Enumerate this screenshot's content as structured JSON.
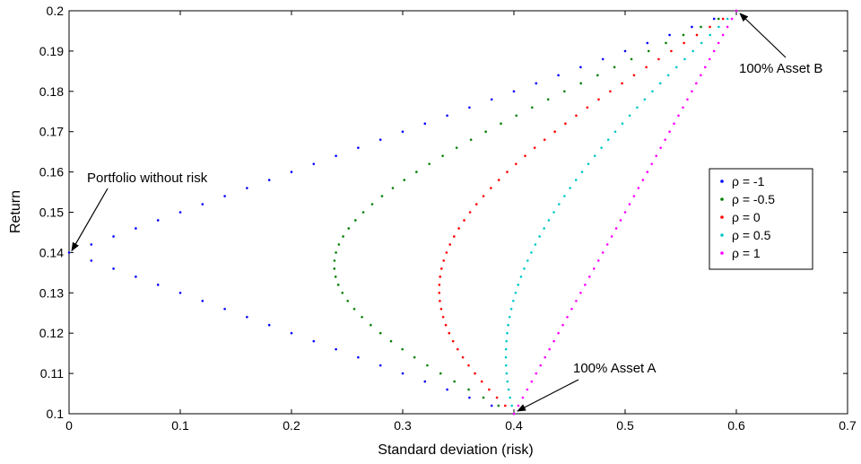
{
  "chart_data": {
    "type": "scatter",
    "xlabel": "Standard deviation (risk)",
    "ylabel": "Return",
    "xlim": [
      0,
      0.7
    ],
    "ylim": [
      0.1,
      0.2
    ],
    "xticks": [
      0,
      0.1,
      0.2,
      0.3,
      0.4,
      0.5,
      0.6,
      0.7
    ],
    "yticks": [
      0.1,
      0.11,
      0.12,
      0.13,
      0.14,
      0.15,
      0.16,
      0.17,
      0.18,
      0.19,
      0.2
    ],
    "xtick_labels": [
      "0",
      "0.1",
      "0.2",
      "0.3",
      "0.4",
      "0.5",
      "0.6",
      "0.7"
    ],
    "ytick_labels": [
      "0.1",
      "0.11",
      "0.12",
      "0.13",
      "0.14",
      "0.15",
      "0.16",
      "0.17",
      "0.18",
      "0.19",
      "0.2"
    ],
    "grid": false,
    "legend_position": "right",
    "asset_a": {
      "sd": 0.4,
      "return": 0.1
    },
    "asset_b": {
      "sd": 0.6,
      "return": 0.2
    },
    "weight_step": 0.02,
    "series": [
      {
        "name": "ρ = -1",
        "rho": -1,
        "color": "#0000ff"
      },
      {
        "name": "ρ = -0.5",
        "rho": -0.5,
        "color": "#008000"
      },
      {
        "name": "ρ = 0",
        "rho": 0,
        "color": "#ff0000"
      },
      {
        "name": "ρ = 0.5",
        "rho": 0.5,
        "color": "#00c8c8"
      },
      {
        "name": "ρ = 1",
        "rho": 1,
        "color": "#ff00ff"
      }
    ],
    "annotations": [
      {
        "text": "Portfolio without risk",
        "x": 0,
        "y": 0.14
      },
      {
        "text": "100% Asset A",
        "x": 0.4,
        "y": 0.1
      },
      {
        "text": "100% Asset B",
        "x": 0.6,
        "y": 0.2
      }
    ]
  }
}
